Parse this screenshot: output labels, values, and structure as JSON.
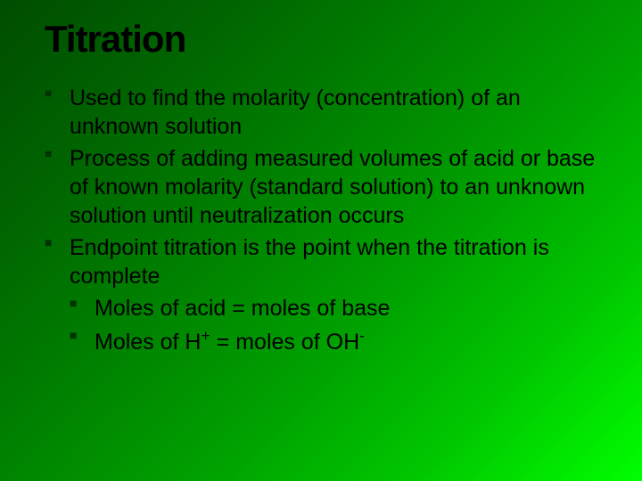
{
  "slide": {
    "title": "Titration",
    "title_fontsize": 42,
    "body_fontsize": 25,
    "bullets": [
      {
        "text": "Used to find the molarity (concentration) of an unknown solution"
      },
      {
        "text": "Process of adding measured volumes of acid or base of known molarity (standard solution) to an unknown solution until neutralization occurs"
      },
      {
        "text": "Endpoint titration is the point when the titration is complete",
        "sub": [
          {
            "text": "Moles of acid = moles of base"
          },
          {
            "html_parts": [
              "Moles of H",
              "+",
              " = moles of OH",
              "-"
            ]
          }
        ]
      }
    ],
    "colors": {
      "bullet_marker": "#003300",
      "text": "#000000",
      "bg_gradient_start": "#004d00",
      "bg_gradient_end": "#00ff00"
    }
  }
}
